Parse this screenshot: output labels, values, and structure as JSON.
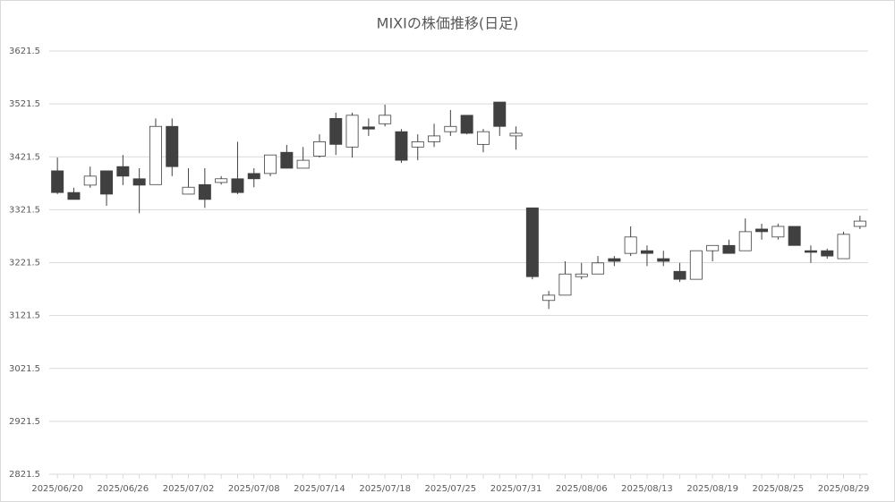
{
  "chart_data": {
    "type": "candlestick",
    "title": "MIXIの株価推移(日足)",
    "categories": [
      "2025/06/20",
      null,
      null,
      null,
      "2025/06/26",
      null,
      null,
      null,
      "2025/07/02",
      null,
      null,
      null,
      "2025/07/08",
      null,
      null,
      null,
      "2025/07/14",
      null,
      null,
      null,
      "2025/07/18",
      null,
      null,
      null,
      "2025/07/25",
      null,
      null,
      null,
      "2025/07/31",
      null,
      null,
      null,
      "2025/08/06",
      null,
      null,
      null,
      "2025/08/13",
      null,
      null,
      null,
      "2025/08/19",
      null,
      null,
      null,
      "2025/08/25",
      null,
      null,
      null,
      "2025/08/29",
      null
    ],
    "open": [
      3395,
      3354,
      3368,
      3395,
      3403,
      3380,
      3369,
      3479,
      3351,
      3369,
      3373,
      3380,
      3390,
      3390,
      3430,
      3400,
      3423,
      3494,
      3440,
      3478,
      3484,
      3469,
      3440,
      3450,
      3469,
      3500,
      3445,
      3525,
      3461,
      3325,
      3150,
      3160,
      3195,
      3200,
      3229,
      3239,
      3244,
      3229,
      3205,
      3190,
      3244,
      3254,
      3244,
      3285,
      3270,
      3290,
      3244,
      3244,
      3229,
      3290
    ],
    "high": [
      3420,
      3363,
      3403,
      3395,
      3425,
      3400,
      3494,
      3494,
      3400,
      3400,
      3385,
      3450,
      3400,
      3425,
      3444,
      3440,
      3464,
      3505,
      3505,
      3494,
      3520,
      3474,
      3464,
      3484,
      3510,
      3500,
      3474,
      3525,
      3479,
      3325,
      3168,
      3224,
      3221,
      3234,
      3234,
      3290,
      3254,
      3244,
      3221,
      3244,
      3254,
      3265,
      3305,
      3295,
      3295,
      3290,
      3254,
      3248,
      3280,
      3310
    ],
    "low": [
      3351,
      3341,
      3363,
      3329,
      3368,
      3315,
      3369,
      3385,
      3351,
      3325,
      3369,
      3351,
      3364,
      3385,
      3400,
      3400,
      3420,
      3425,
      3420,
      3461,
      3479,
      3410,
      3415,
      3440,
      3461,
      3464,
      3430,
      3461,
      3435,
      3190,
      3134,
      3160,
      3190,
      3200,
      3215,
      3234,
      3215,
      3215,
      3185,
      3190,
      3224,
      3239,
      3244,
      3265,
      3265,
      3254,
      3221,
      3229,
      3229,
      3285
    ],
    "close": [
      3354,
      3341,
      3385,
      3351,
      3385,
      3368,
      3479,
      3403,
      3364,
      3341,
      3380,
      3354,
      3380,
      3425,
      3400,
      3415,
      3450,
      3445,
      3500,
      3474,
      3500,
      3415,
      3450,
      3461,
      3479,
      3466,
      3469,
      3479,
      3466,
      3195,
      3160,
      3200,
      3200,
      3221,
      3224,
      3270,
      3239,
      3224,
      3190,
      3244,
      3254,
      3239,
      3280,
      3280,
      3290,
      3254,
      3241,
      3234,
      3275,
      3300
    ],
    "up_color": "#ffffff",
    "down_color": "#404040",
    "line_color": "#404040",
    "ylim": [
      2821.5,
      3621.5
    ],
    "yticks": [
      2821.5,
      2921.5,
      3021.5,
      3121.5,
      3221.5,
      3321.5,
      3421.5,
      3521.5,
      3621.5
    ],
    "grid": true
  }
}
